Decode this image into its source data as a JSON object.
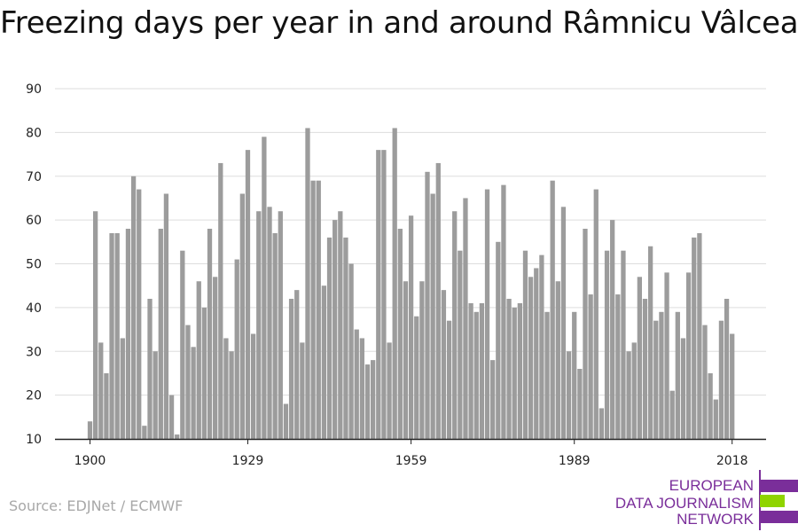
{
  "title": "Freezing days per year in and around Râmnicu Vâlcea",
  "source": "Source: EDJNet / ECMWF",
  "logo": {
    "lines": [
      "EUROPEAN",
      "DATA JOURNALISM",
      "NETWORK"
    ],
    "text_color": "#7a2e9a",
    "bar_colors": [
      "#7a2e9a",
      "#8fd400",
      "#7a2e9a"
    ]
  },
  "colors": {
    "bar": "#9c9c9c",
    "grid": "#dddddd",
    "axis": "#222222",
    "tick_text": "#222222"
  },
  "chart_data": {
    "type": "bar",
    "title": "Freezing days per year in and around Râmnicu Vâlcea",
    "xlabel": "",
    "ylabel": "",
    "ylim": [
      10,
      90
    ],
    "yticks": [
      10,
      20,
      30,
      40,
      50,
      60,
      70,
      80,
      90
    ],
    "xticks": [
      1900,
      1929,
      1959,
      1989,
      2018
    ],
    "grid": true,
    "legend": "none",
    "years": [
      1900,
      1901,
      1902,
      1903,
      1904,
      1905,
      1906,
      1907,
      1908,
      1909,
      1910,
      1911,
      1912,
      1913,
      1914,
      1915,
      1916,
      1917,
      1918,
      1919,
      1920,
      1921,
      1922,
      1923,
      1924,
      1925,
      1926,
      1927,
      1928,
      1929,
      1930,
      1931,
      1932,
      1933,
      1934,
      1935,
      1936,
      1937,
      1938,
      1939,
      1940,
      1941,
      1942,
      1943,
      1944,
      1945,
      1946,
      1947,
      1948,
      1949,
      1950,
      1951,
      1952,
      1953,
      1954,
      1955,
      1956,
      1957,
      1958,
      1959,
      1960,
      1961,
      1962,
      1963,
      1964,
      1965,
      1966,
      1967,
      1968,
      1969,
      1970,
      1971,
      1972,
      1973,
      1974,
      1975,
      1976,
      1977,
      1978,
      1979,
      1980,
      1981,
      1982,
      1983,
      1984,
      1985,
      1986,
      1987,
      1988,
      1989,
      1990,
      1991,
      1992,
      1993,
      1994,
      1995,
      1996,
      1997,
      1998,
      1999,
      2000,
      2001,
      2002,
      2003,
      2004,
      2005,
      2006,
      2007,
      2008,
      2009,
      2010,
      2011,
      2012,
      2013,
      2014,
      2015,
      2016,
      2017,
      2018
    ],
    "values": [
      14,
      62,
      32,
      25,
      57,
      57,
      33,
      58,
      70,
      67,
      13,
      42,
      30,
      58,
      66,
      20,
      11,
      53,
      36,
      31,
      46,
      40,
      58,
      47,
      73,
      33,
      30,
      51,
      66,
      76,
      34,
      62,
      79,
      63,
      57,
      62,
      18,
      42,
      44,
      32,
      81,
      69,
      69,
      45,
      56,
      60,
      62,
      56,
      50,
      35,
      33,
      27,
      28,
      76,
      76,
      32,
      81,
      58,
      46,
      61,
      38,
      46,
      71,
      66,
      73,
      44,
      37,
      62,
      53,
      65,
      41,
      39,
      41,
      67,
      28,
      55,
      68,
      42,
      40,
      41,
      53,
      47,
      49,
      52,
      39,
      69,
      46,
      63,
      30,
      39,
      26,
      58,
      43,
      67,
      17,
      53,
      60,
      43,
      53,
      30,
      32,
      47,
      42,
      54,
      37,
      39,
      48,
      21,
      39,
      33,
      48,
      56,
      57,
      36,
      25,
      19,
      37,
      42,
      34
    ]
  }
}
